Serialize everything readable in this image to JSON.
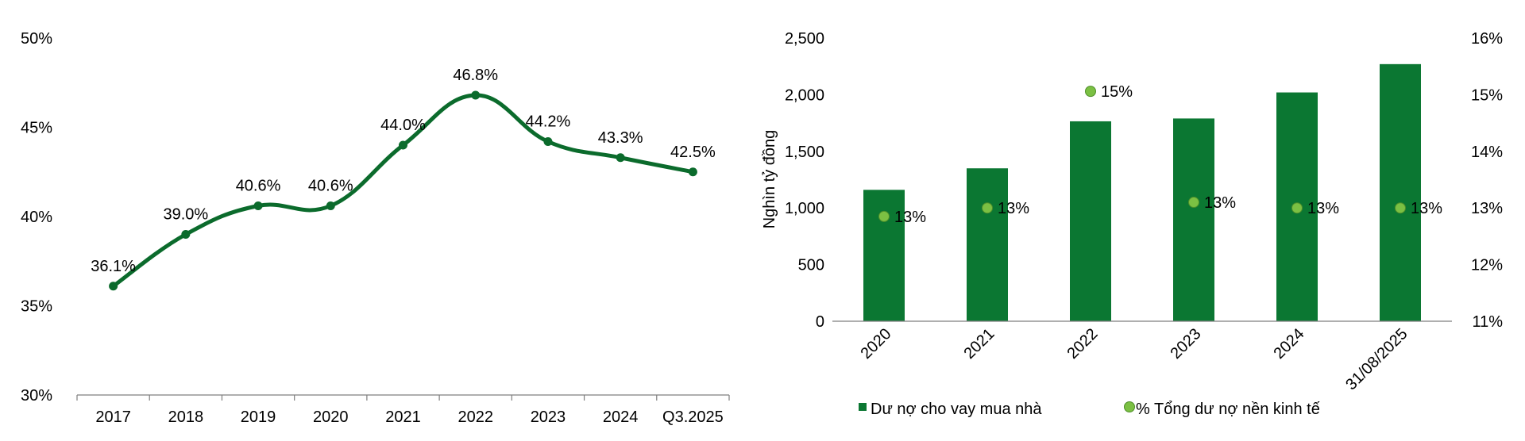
{
  "colors": {
    "line": "#0b6b2c",
    "bar": "#0b7732",
    "dot": "#7bc043",
    "dot_stroke": "#4e8f2a",
    "axis": "#7f7f7f"
  },
  "chart_data": [
    {
      "type": "line",
      "title": "",
      "categories": [
        "2017",
        "2018",
        "2019",
        "2020",
        "2021",
        "2022",
        "2023",
        "2024",
        "Q3.2025"
      ],
      "values": [
        36.1,
        39.0,
        40.6,
        40.6,
        44.0,
        46.8,
        44.2,
        43.3,
        42.5
      ],
      "value_labels": [
        "36.1%",
        "39.0%",
        "40.6%",
        "40.6%",
        "44.0%",
        "46.8%",
        "44.2%",
        "43.3%",
        "42.5%"
      ],
      "ylim": [
        30,
        50
      ],
      "ytick_labels": [
        "30%",
        "35%",
        "40%",
        "45%",
        "50%"
      ],
      "xlabel": "",
      "ylabel": "",
      "smooth": true,
      "legend": false
    },
    {
      "type": "bar",
      "title": "",
      "categories": [
        "2020",
        "2021",
        "2022",
        "2023",
        "2024",
        "31/08/2025"
      ],
      "series": [
        {
          "name": "Dư nợ cho vay mua nhà",
          "kind": "bar",
          "axis": "left",
          "values": [
            1160,
            1350,
            1765,
            1790,
            2020,
            2270
          ]
        },
        {
          "name": "% Tổng dư nợ nền kinh tế",
          "kind": "scatter",
          "axis": "right",
          "values": [
            12.85,
            13.0,
            15.06,
            13.1,
            13.0,
            13.0
          ],
          "labels": [
            "13%",
            "13%",
            "15%",
            "13%",
            "13%",
            "13%"
          ]
        }
      ],
      "ylabel": "Nghìn tỷ đồng",
      "ylim": [
        0,
        2500
      ],
      "ytick_labels": [
        "0",
        "500",
        "1,000",
        "1,500",
        "2,000",
        "2,500"
      ],
      "y2lim": [
        11,
        16
      ],
      "y2tick_labels": [
        "11%",
        "12%",
        "13%",
        "14%",
        "15%",
        "16%"
      ],
      "legend": "bottom"
    }
  ]
}
